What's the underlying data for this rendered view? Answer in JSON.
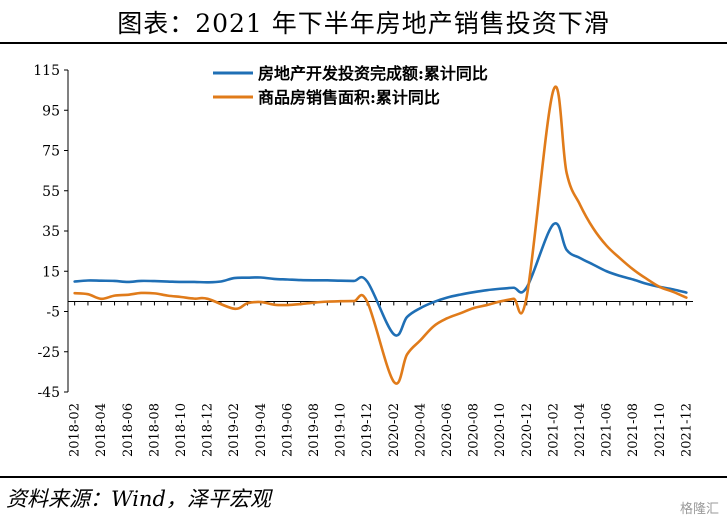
{
  "header": {
    "title": "图表：2021 年下半年房地产销售投资下滑"
  },
  "footer": {
    "source": "资料来源：Wind，泽平宏观",
    "watermark": "格隆汇"
  },
  "chart_data": {
    "type": "line",
    "title": "",
    "xlabel": "",
    "ylabel": "",
    "ylim": [
      -45,
      115
    ],
    "yticks": [
      115,
      95,
      75,
      55,
      35,
      15,
      -5,
      -25,
      -45
    ],
    "grid": false,
    "legend_position": "top-center",
    "x": [
      "2018-02",
      "2018-03",
      "2018-04",
      "2018-05",
      "2018-06",
      "2018-07",
      "2018-08",
      "2018-09",
      "2018-10",
      "2018-11",
      "2018-12",
      "2019-01",
      "2019-02",
      "2019-03",
      "2019-04",
      "2019-05",
      "2019-06",
      "2019-07",
      "2019-08",
      "2019-09",
      "2019-10",
      "2019-11",
      "2019-12",
      "2020-01",
      "2020-02",
      "2020-03",
      "2020-04",
      "2020-05",
      "2020-06",
      "2020-07",
      "2020-08",
      "2020-09",
      "2020-10",
      "2020-11",
      "2020-12",
      "2021-01",
      "2021-02",
      "2021-03",
      "2021-04",
      "2021-05",
      "2021-06",
      "2021-07",
      "2021-08",
      "2021-09",
      "2021-10",
      "2021-11",
      "2021-12"
    ],
    "x_tick_labels": [
      "2018-02",
      "2018-04",
      "2018-06",
      "2018-08",
      "2018-10",
      "2018-12",
      "2019-02",
      "2019-04",
      "2019-06",
      "2019-08",
      "2019-10",
      "2019-12",
      "2020-02",
      "2020-04",
      "2020-06",
      "2020-08",
      "2020-10",
      "2020-12",
      "2021-02",
      "2021-04",
      "2021-06",
      "2021-08",
      "2021-10",
      "2021-12"
    ],
    "series": [
      {
        "name": "房地产开发投资完成额:累计同比",
        "color": "#1f6fb5",
        "values": [
          9.9,
          10.4,
          10.3,
          10.2,
          9.7,
          10.2,
          10.1,
          9.9,
          9.7,
          9.7,
          9.5,
          9.9,
          11.6,
          11.8,
          11.9,
          11.2,
          10.9,
          10.6,
          10.5,
          10.5,
          10.3,
          10.2,
          9.9,
          null,
          -16.3,
          -7.7,
          -3.3,
          -0.3,
          1.9,
          3.4,
          4.6,
          5.6,
          6.3,
          6.8,
          7.0,
          null,
          38.3,
          25.6,
          21.6,
          18.3,
          15.0,
          12.7,
          10.9,
          8.8,
          7.2,
          6.0,
          4.4
        ]
      },
      {
        "name": "商品房销售面积:累计同比",
        "color": "#e07b1a",
        "values": [
          4.1,
          3.6,
          1.3,
          2.9,
          3.3,
          4.2,
          4.0,
          2.9,
          2.2,
          1.4,
          1.3,
          null,
          -3.6,
          -0.9,
          -0.3,
          -1.6,
          -1.8,
          -1.3,
          -0.6,
          -0.1,
          0.1,
          0.2,
          -0.1,
          null,
          -39.9,
          -26.3,
          -19.3,
          -12.3,
          -8.4,
          -5.9,
          -3.3,
          -1.8,
          0.0,
          1.3,
          2.6,
          null,
          104.9,
          63.8,
          48.1,
          36.3,
          27.7,
          21.5,
          15.9,
          11.3,
          7.2,
          4.8,
          1.9
        ]
      }
    ]
  }
}
